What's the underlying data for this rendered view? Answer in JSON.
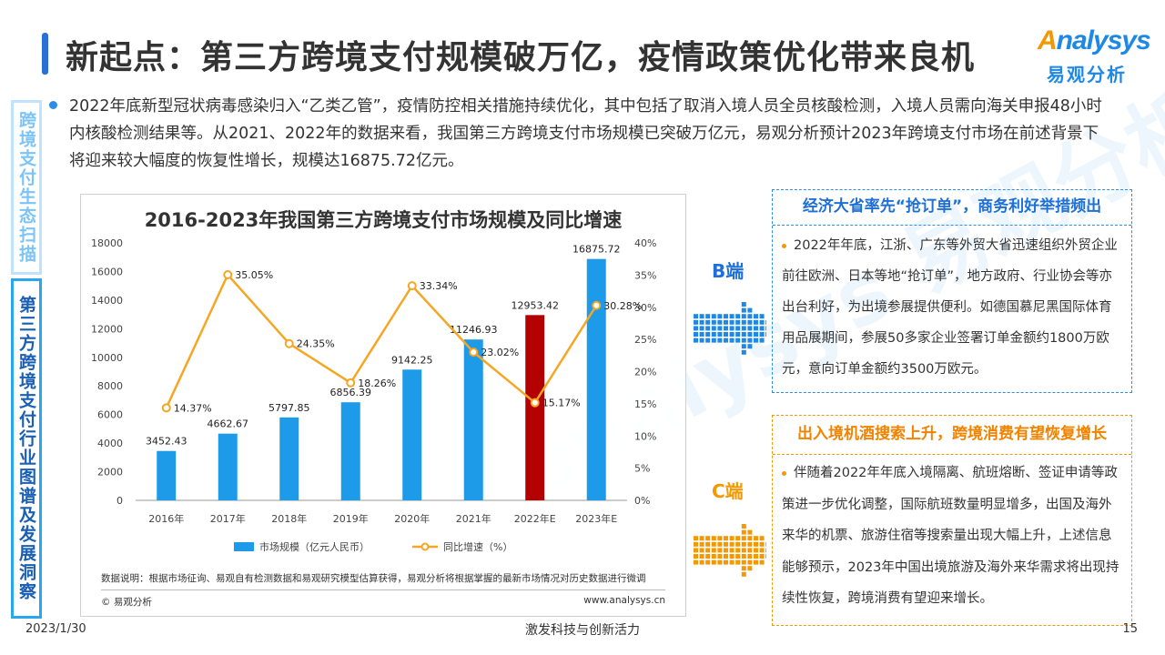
{
  "header": {
    "title": "新起点：第三方跨境支付规模破万亿，疫情政策优化带来良机",
    "logo_en": "nalysys",
    "logo_en_initial": "A",
    "logo_cn": "易观分析"
  },
  "sidebar": {
    "section_top": "跨境支付生态扫描",
    "section_bottom": "第三方跨境支付行业图谱及发展洞察"
  },
  "intro": {
    "paragraph": "2022年底新型冠状病毒感染归入“乙类乙管”，疫情防控相关措施持续优化，其中包括了取消入境人员全员核酸检测，入境人员需向海关申报48小时内核酸检测结果等。从2021、2022年的数据来看，我国第三方跨境支付市场规模已突破万亿元，易观分析预计2023年跨境支付市场在前述背景下将迎来较大幅度的恢复性增长，规模达16875.72亿元。"
  },
  "chart_data": {
    "type": "bar",
    "title": "2016-2023年我国第三方跨境支付市场规模及同比增速",
    "categories": [
      "2016年",
      "2017年",
      "2018年",
      "2019年",
      "2020年",
      "2021年",
      "2022年E",
      "2023年E"
    ],
    "series": [
      {
        "name": "市场规模（亿元人民币）",
        "type": "bar",
        "axis": "left",
        "values": [
          3452.43,
          4662.67,
          5797.85,
          6856.39,
          9142.25,
          11246.93,
          12953.42,
          16875.72
        ],
        "value_labels": [
          "3452.43",
          "4662.67",
          "5797.85",
          "6856.39",
          "9142.25",
          "11246.93",
          "12953.42",
          "16875.72"
        ],
        "color": "#1e9be8",
        "highlight_index": 6,
        "highlight_color": "#b30000"
      },
      {
        "name": "同比增速（%）",
        "type": "line",
        "axis": "right",
        "values": [
          14.37,
          35.05,
          24.35,
          18.26,
          33.34,
          23.02,
          15.17,
          30.28
        ],
        "value_labels": [
          "14.37%",
          "35.05%",
          "24.35%",
          "18.26%",
          "33.34%",
          "23.02%",
          "15.17%",
          "30.28%"
        ],
        "color": "#f5a623"
      }
    ],
    "y_left": {
      "range": [
        0,
        18000
      ],
      "ticks": [
        "0",
        "2000",
        "4000",
        "6000",
        "8000",
        "10000",
        "12000",
        "14000",
        "16000",
        "18000"
      ]
    },
    "y_right": {
      "range": [
        0,
        40
      ],
      "ticks": [
        "0%",
        "5%",
        "10%",
        "15%",
        "20%",
        "25%",
        "30%",
        "35%",
        "40%"
      ]
    },
    "legend": "bottom",
    "grid": false
  },
  "chart_notes": {
    "data_note": "数据说明：根据市场征询、易观自有检测数据和易观研究模型估算获得，易观分析将根据掌握的最新市场情况对历史数据进行微调",
    "copyright": "© 易观分析",
    "site": "www.analysys.cn"
  },
  "b_side": {
    "label": "B端",
    "heading": "经济大省率先“抢订单”，商务利好举措频出",
    "body": "2022年年底，江浙、广东等外贸大省迅速组织外贸企业前往欧洲、日本等地“抢订单”，地方政府、行业协会等亦出台利好，为出境参展提供便利。如德国慕尼黑国际体育用品展期间，参展50多家企业签署订单金额约1800万欧元，意向订单金额约3500万欧元。"
  },
  "c_side": {
    "label": "C端",
    "heading": "出入境机酒搜索上升，跨境消费有望恢复增长",
    "body": "伴随着2022年年底入境隔离、航班熔断、签证申请等政策进一步优化调整，国际航班数量明显增多，出国及海外来华的机票、旅游住宿等搜索量出现大幅上升，上述信息能够预示，2023年中国出境旅游及海外来华需求将出现持续性恢复，跨境消费有望迎来增长。"
  },
  "footer": {
    "date": "2023/1/30",
    "slogan": "激发科技与创新活力",
    "page": "15"
  },
  "colors": {
    "brand_blue": "#1e88e5",
    "accent_orange": "#f39800",
    "bar_blue": "#1e9be8",
    "highlight_red": "#b30000"
  }
}
